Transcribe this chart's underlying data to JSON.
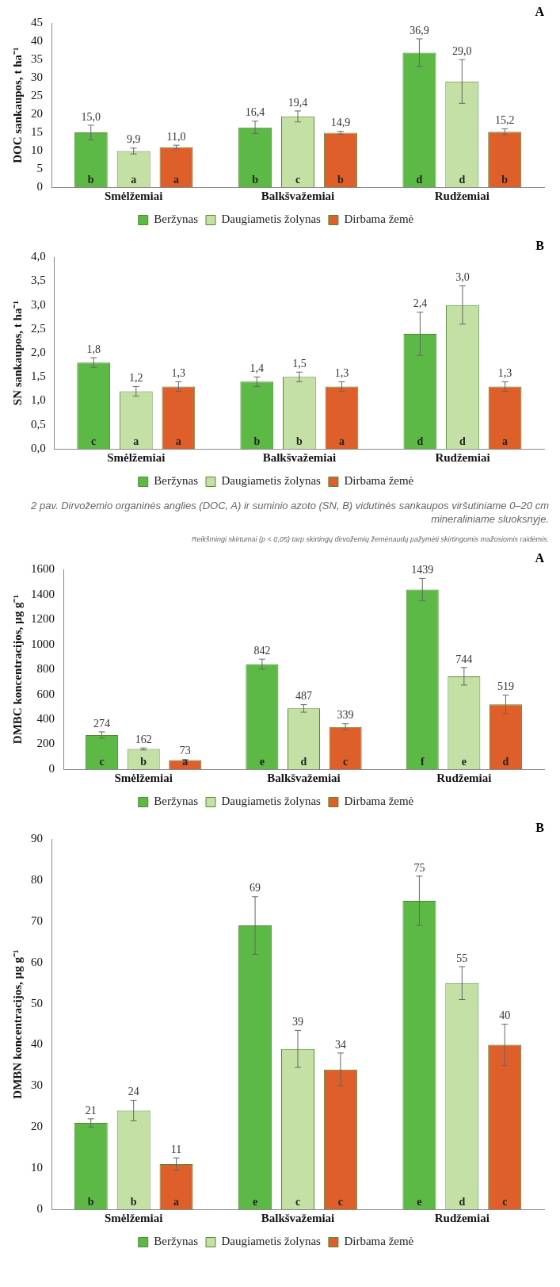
{
  "chart_data": [
    {
      "type": "bar",
      "title": "A",
      "ylabel": "DOC sankaupos, t ha⁻¹",
      "categories": [
        "Smėlžemiai",
        "Balkšvažemiai",
        "Rudžemiai"
      ],
      "series": [
        {
          "name": "Beržynas",
          "color": "#5cb946",
          "values": [
            15.0,
            16.4,
            36.9
          ],
          "errors": [
            2,
            1.7,
            3.8
          ],
          "value_labels": [
            "15,0",
            "16,4",
            "36,9"
          ]
        },
        {
          "name": "Daugiametis žolynas",
          "color": "#c5e0a5",
          "values": [
            9.9,
            19.4,
            29.0
          ],
          "errors": [
            0.8,
            1.5,
            6
          ],
          "value_labels": [
            "9,9",
            "19,4",
            "29,0"
          ]
        },
        {
          "name": "Dirbama žemė",
          "color": "#de5f2a",
          "values": [
            11.0,
            14.9,
            15.2
          ],
          "errors": [
            0.5,
            0.4,
            0.8
          ],
          "value_labels": [
            "11,0",
            "14,9",
            "15,2"
          ]
        }
      ],
      "ylim": [
        0,
        45
      ],
      "yticks": [
        0,
        5,
        10,
        15,
        20,
        25,
        30,
        35,
        40,
        45
      ],
      "legend": "bottom",
      "annotations": [
        "b",
        "a",
        "a",
        "b",
        "c",
        "b",
        "d",
        "d",
        "b"
      ]
    },
    {
      "type": "bar",
      "title": "B",
      "ylabel": "SN sankaupos, t ha⁻¹",
      "categories": [
        "Smėlžemiai",
        "Balkšvažemiai",
        "Rudžemiai"
      ],
      "series": [
        {
          "name": "Beržynas",
          "color": "#5cb946",
          "values": [
            1.8,
            1.4,
            2.4
          ],
          "errors": [
            0.1,
            0.1,
            0.45
          ],
          "value_labels": [
            "1,8",
            "1,4",
            "2,4"
          ]
        },
        {
          "name": "Daugiametis žolynas",
          "color": "#c5e0a5",
          "values": [
            1.2,
            1.5,
            3.0
          ],
          "errors": [
            0.1,
            0.1,
            0.4
          ],
          "value_labels": [
            "1,2",
            "1,5",
            "3,0"
          ]
        },
        {
          "name": "Dirbama žemė",
          "color": "#de5f2a",
          "values": [
            1.3,
            1.3,
            1.3
          ],
          "errors": [
            0.1,
            0.1,
            0.1
          ],
          "value_labels": [
            "1,3",
            "1,3",
            "1,3"
          ]
        }
      ],
      "ylim": [
        0,
        4
      ],
      "yticks": [
        {
          "value": 0,
          "label": "0,0"
        },
        {
          "value": 0.5,
          "label": "0,5"
        },
        {
          "value": 1,
          "label": "1,0"
        },
        {
          "value": 1.5,
          "label": "1,5"
        },
        {
          "value": 2,
          "label": "2,0"
        },
        {
          "value": 2.5,
          "label": "2,5"
        },
        {
          "value": 3,
          "label": "3,0"
        },
        {
          "value": 3.5,
          "label": "3,5"
        },
        {
          "value": 4,
          "label": "4,0"
        }
      ],
      "legend": "bottom",
      "annotations": [
        "c",
        "a",
        "a",
        "b",
        "b",
        "a",
        "d",
        "d",
        "a",
        "2 pav. Dirvožemio organinės anglies (DOC, A) ir suminio azoto (SN, B) vidutinės sankaupos viršutiniame 0–20 cm mineraliniame sluoksnyje.",
        "Reikšmingi skirtumai (p < 0,05) tarp skirtingų dirvožemių žemėnaudų pažymėti skirtingomis mažosiomis raidėmis."
      ]
    },
    {
      "type": "bar",
      "title": "A",
      "ylabel": "DMBC koncentracijos, µg g⁻¹",
      "categories": [
        "Smėlžemiai",
        "Balkšvažemiai",
        "Rudžemiai"
      ],
      "series": [
        {
          "name": "Beržynas",
          "color": "#5cb946",
          "values": [
            274,
            842,
            1439
          ],
          "errors": [
            25,
            40,
            90
          ]
        },
        {
          "name": "Daugiametis žolynas",
          "color": "#c5e0a5",
          "values": [
            162,
            487,
            744
          ],
          "errors": [
            8,
            30,
            70
          ]
        },
        {
          "name": "Dirbama žemė",
          "color": "#de5f2a",
          "values": [
            73,
            339,
            519
          ],
          "errors": [
            5,
            25,
            75
          ]
        }
      ],
      "ylim": [
        0,
        1600
      ],
      "yticks": [
        0,
        200,
        400,
        600,
        800,
        1000,
        1200,
        1400,
        1600
      ],
      "legend": "bottom",
      "data_labels": true,
      "annotations": [
        "c",
        "b",
        "a",
        "e",
        "d",
        "c",
        "f",
        "e",
        "d"
      ]
    },
    {
      "type": "bar",
      "title": "B",
      "ylabel": "DMBN koncentracijos, µg g⁻¹",
      "categories": [
        "Smėlžemiai",
        "Balkšvažemiai",
        "Rudžemiai"
      ],
      "series": [
        {
          "name": "Beržynas",
          "color": "#5cb946",
          "values": [
            21,
            69,
            75
          ],
          "errors": [
            1,
            7,
            6
          ]
        },
        {
          "name": "Daugiametis žolynas",
          "color": "#c5e0a5",
          "values": [
            24,
            39,
            55
          ],
          "errors": [
            2.5,
            4.5,
            4
          ]
        },
        {
          "name": "Dirbama žemė",
          "color": "#de5f2a",
          "values": [
            11,
            34,
            40
          ],
          "errors": [
            1.5,
            4,
            5
          ]
        }
      ],
      "ylim": [
        0,
        90
      ],
      "yticks": [
        0,
        10,
        20,
        30,
        40,
        50,
        60,
        70,
        80,
        90
      ],
      "legend": "bottom",
      "data_labels": true,
      "annotations": [
        "b",
        "b",
        "a",
        "e",
        "c",
        "c",
        "e",
        "d",
        "c"
      ]
    }
  ]
}
